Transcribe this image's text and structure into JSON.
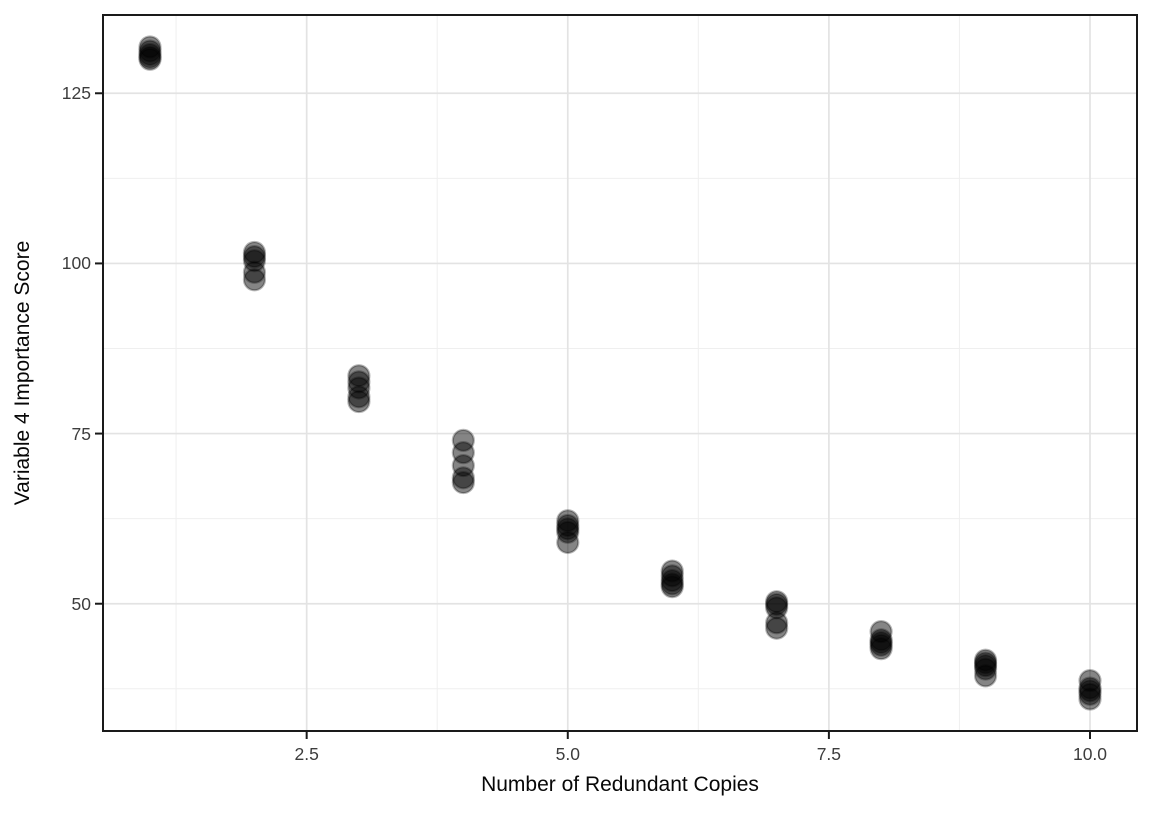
{
  "chart_data": {
    "type": "scatter",
    "title": "",
    "xlabel": "Number of Redundant Copies",
    "ylabel": "Variable 4 Importance Score",
    "xlim": [
      0.55,
      10.45
    ],
    "ylim": [
      31.3,
      136.5
    ],
    "x_ticks": {
      "values": [
        2.5,
        5.0,
        7.5,
        10.0
      ],
      "labels": [
        "2.5",
        "5.0",
        "7.5",
        "10.0"
      ]
    },
    "y_ticks": {
      "values": [
        50,
        75,
        100,
        125
      ],
      "labels": [
        "50",
        "75",
        "100",
        "125"
      ]
    },
    "x_minor_gridlines": [
      1.25,
      3.75,
      6.25,
      8.75
    ],
    "y_minor_gridlines": [
      37.5,
      62.5,
      87.5,
      112.5
    ],
    "grid": "on",
    "legend": "none",
    "point_style": {
      "color": "#000000",
      "fill_opacity": 0.48,
      "stroke_opacity": 0.28,
      "radius": 10.5
    },
    "colors": {
      "panel_background": "#ffffff",
      "grid_major": "#e3e3e3",
      "grid_minor": "#efefef",
      "panel_border": "#1a1a1a",
      "tick_mark": "#1a1a1a",
      "tick_label": "#3d3d3d",
      "axis_title": "#070707"
    },
    "points": [
      [
        1,
        131.8
      ],
      [
        1,
        131.2
      ],
      [
        1,
        130.7
      ],
      [
        1,
        130.3
      ],
      [
        1,
        130.0
      ],
      [
        2,
        101.6
      ],
      [
        2,
        101.0
      ],
      [
        2,
        100.4
      ],
      [
        2,
        98.7
      ],
      [
        2,
        97.6
      ],
      [
        3,
        83.5
      ],
      [
        3,
        82.6
      ],
      [
        3,
        81.7
      ],
      [
        3,
        80.4
      ],
      [
        3,
        79.7
      ],
      [
        4,
        74.0
      ],
      [
        4,
        72.2
      ],
      [
        4,
        70.3
      ],
      [
        4,
        68.5
      ],
      [
        4,
        67.8
      ],
      [
        5,
        62.2
      ],
      [
        5,
        61.5
      ],
      [
        5,
        61.0
      ],
      [
        5,
        60.5
      ],
      [
        5,
        59.0
      ],
      [
        6,
        54.8
      ],
      [
        6,
        54.1
      ],
      [
        6,
        53.4
      ],
      [
        6,
        52.9
      ],
      [
        6,
        52.5
      ],
      [
        7,
        50.3
      ],
      [
        7,
        49.9
      ],
      [
        7,
        49.4
      ],
      [
        7,
        47.2
      ],
      [
        7,
        46.4
      ],
      [
        8,
        45.9
      ],
      [
        8,
        44.7
      ],
      [
        8,
        44.3
      ],
      [
        8,
        43.9
      ],
      [
        8,
        43.4
      ],
      [
        9,
        41.7
      ],
      [
        9,
        41.3
      ],
      [
        9,
        40.9
      ],
      [
        9,
        40.4
      ],
      [
        9,
        39.4
      ],
      [
        10,
        38.7
      ],
      [
        10,
        37.6
      ],
      [
        10,
        37.2
      ],
      [
        10,
        36.7
      ],
      [
        10,
        36.0
      ]
    ]
  }
}
